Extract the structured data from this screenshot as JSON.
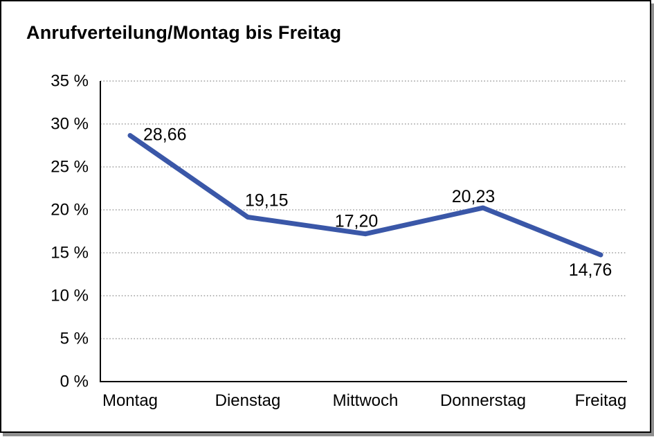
{
  "title": "Anrufverteilung/Montag bis Freitag",
  "window": {
    "background": "#FFFFFF",
    "border_color": "#000000",
    "shadow_color": "#8F8F8F"
  },
  "chart_data": {
    "type": "line",
    "title": "Anrufverteilung/Montag bis Freitag",
    "categories": [
      "Montag",
      "Dienstag",
      "Mittwoch",
      "Donnerstag",
      "Freitag"
    ],
    "values": [
      28.66,
      19.15,
      17.2,
      20.23,
      14.76
    ],
    "value_labels": [
      "28,66",
      "19,15",
      "17,20",
      "20,23",
      "14,76"
    ],
    "xlabel": "",
    "ylabel": "",
    "ylim": [
      0,
      35
    ],
    "ytick_step": 5,
    "ytick_labels": [
      "0 %",
      "5 %",
      "10 %",
      "15 %",
      "20 %",
      "25 %",
      "30 %",
      "35 %"
    ],
    "grid": {
      "horizontal": true,
      "style": "dotted",
      "color": "#8A8A8A"
    },
    "legend": "none",
    "line_color": "#3A57A8",
    "axis_color": "#000000",
    "text_color": "#000000",
    "marker": "none"
  }
}
